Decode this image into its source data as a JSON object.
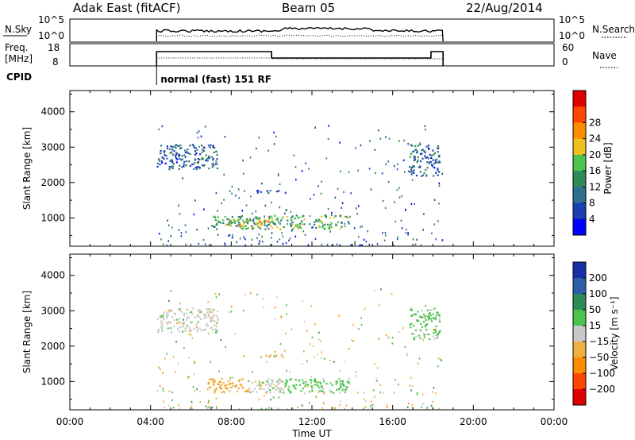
{
  "header": {
    "radar": "Adak East (fitACF)",
    "beam": "Beam 05",
    "date": "22/Aug/2014"
  },
  "top_panels": {
    "nsky_label": "N.Sky",
    "nsky_ticks": [
      "10^5",
      "10^0"
    ],
    "nsearch_label": "N.Search",
    "nsearch_ticks": [
      "10^5",
      "10^0"
    ],
    "freq_label": "Freq.",
    "freq_unit": "[MHz]",
    "freq_ticks": [
      "18",
      "8"
    ],
    "nave_label": "Nave",
    "nave_ticks": [
      "60",
      "0"
    ],
    "cpid_label": "CPID",
    "cpid_value": "normal (fast) 151 RF"
  },
  "colors": {
    "power": [
      "#0000ff",
      "#1a3fb0",
      "#2e6e8e",
      "#2e8b57",
      "#4cc34c",
      "#f0c020",
      "#ff8c00",
      "#ff4500",
      "#e00000"
    ],
    "velocity": [
      "#e00000",
      "#ff4500",
      "#ff8c00",
      "#f0b040",
      "#c8c8c8",
      "#4cc34c",
      "#2e8b57",
      "#2e5ea8",
      "#1a2fa8"
    ]
  },
  "chart_data": [
    {
      "type": "heatmap",
      "panel": "power",
      "ylabel": "Slant Range [km]",
      "yticks": [
        "1000",
        "2000",
        "3000",
        "4000"
      ],
      "ylim": [
        200,
        4600
      ],
      "xlim": [
        0,
        24
      ],
      "colorbar_label": "Power [dB]",
      "colorbar_ticks": [
        "4",
        "8",
        "12",
        "16",
        "20",
        "24",
        "28"
      ],
      "colorbar_range": [
        0,
        32
      ],
      "regions": [
        {
          "t0": 4.3,
          "t1": 7.3,
          "r0": 2400,
          "r1": 3100,
          "value": 8
        },
        {
          "t0": 7.0,
          "t1": 13.8,
          "r0": 700,
          "r1": 1100,
          "value": 14
        },
        {
          "t0": 7.8,
          "t1": 10.0,
          "r0": 780,
          "r1": 980,
          "value": 20
        },
        {
          "t0": 9.2,
          "t1": 10.8,
          "r0": 1700,
          "r1": 1800,
          "value": 8
        },
        {
          "t0": 16.8,
          "t1": 18.3,
          "r0": 2200,
          "r1": 3100,
          "value": 8
        }
      ]
    },
    {
      "type": "heatmap",
      "panel": "velocity",
      "ylabel": "Slant Range [km]",
      "yticks": [
        "1000",
        "2000",
        "3000",
        "4000"
      ],
      "ylim": [
        200,
        4600
      ],
      "xlim": [
        0,
        24
      ],
      "colorbar_label": "Velocity [m s⁻¹]",
      "colorbar_ticks": [
        "200",
        "100",
        "50",
        "15",
        "−15",
        "−50",
        "−100",
        "−200"
      ],
      "regions": [
        {
          "t0": 4.3,
          "t1": 7.3,
          "r0": 2400,
          "r1": 3100,
          "value": 0
        },
        {
          "t0": 6.8,
          "t1": 8.8,
          "r0": 700,
          "r1": 1100,
          "value": -40
        },
        {
          "t0": 8.8,
          "t1": 10.5,
          "r0": 700,
          "r1": 1100,
          "value": 0
        },
        {
          "t0": 10.5,
          "t1": 13.8,
          "r0": 700,
          "r1": 1100,
          "value": 30
        },
        {
          "t0": 9.2,
          "t1": 10.8,
          "r0": 1700,
          "r1": 1800,
          "value": -30
        },
        {
          "t0": 16.8,
          "t1": 18.3,
          "r0": 2200,
          "r1": 3100,
          "value": 25
        }
      ]
    }
  ],
  "x_axis": {
    "label": "Time UT",
    "ticks": [
      "00:00",
      "04:00",
      "08:00",
      "12:00",
      "16:00",
      "20:00",
      "00:00"
    ],
    "hours": [
      0,
      4,
      8,
      12,
      16,
      20,
      24
    ]
  },
  "data_window": {
    "start_hour": 4.3,
    "end_hour": 18.5
  }
}
